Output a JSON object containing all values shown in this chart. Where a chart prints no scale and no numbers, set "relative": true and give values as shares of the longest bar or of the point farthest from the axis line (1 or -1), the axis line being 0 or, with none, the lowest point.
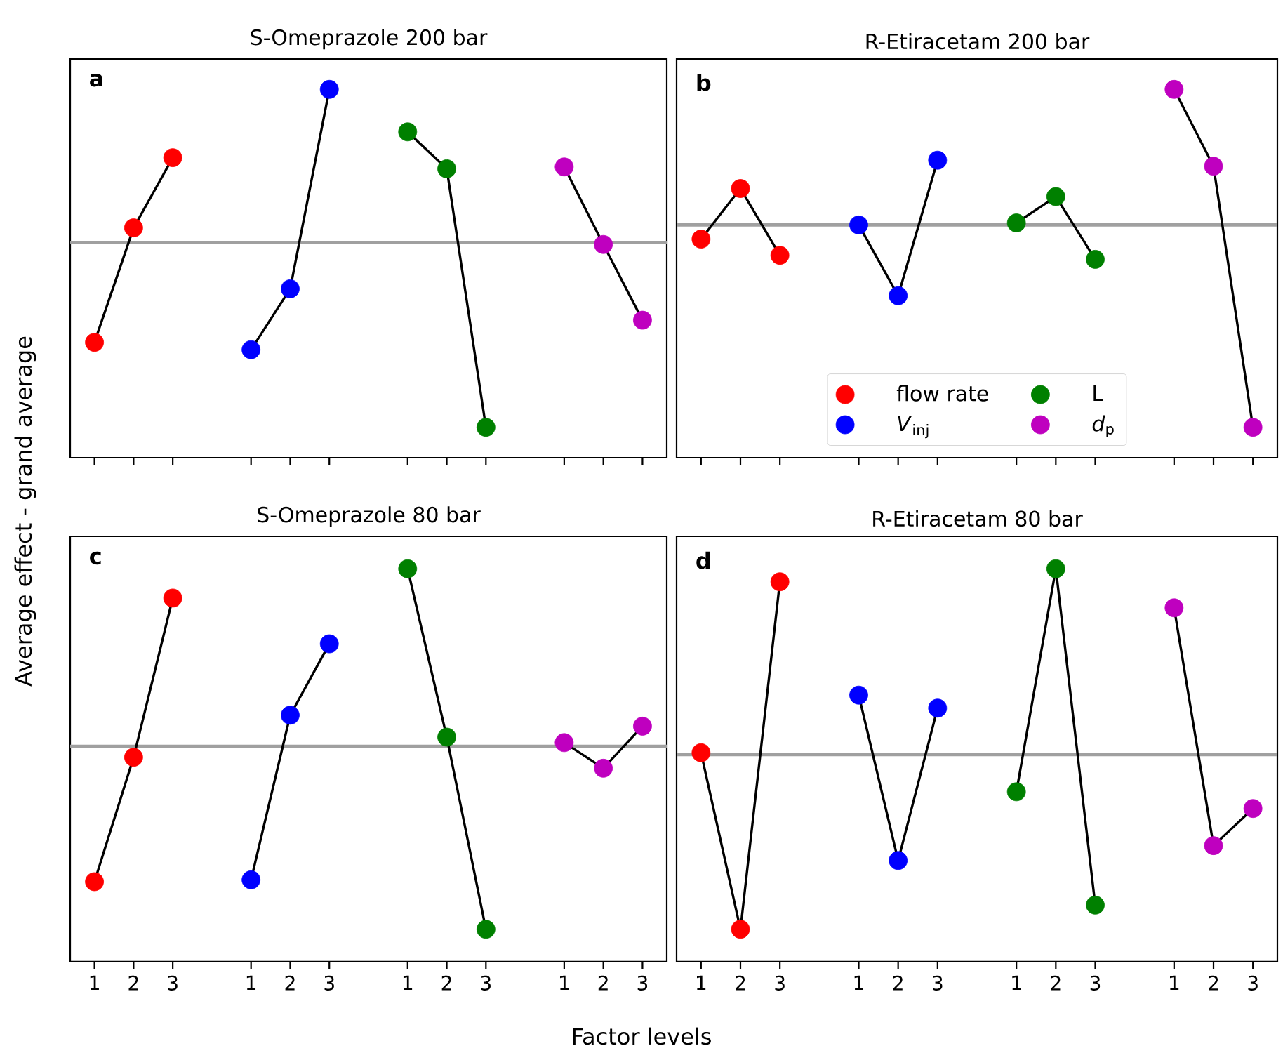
{
  "chart_data": [
    {
      "type": "line",
      "title": "S-Omeprazole 200 bar",
      "ylabel": "Average effect - grand average",
      "annotations": [
        "**a**"
      ],
      "relative": true,
      "marker": "circle",
      "tick_labels": false,
      "categories": [
        "1",
        "2",
        "3",
        null,
        "1",
        "2",
        "3",
        null,
        "1",
        "2",
        "3",
        null,
        "1",
        "2",
        "3"
      ],
      "ref_lines": [
        {
          "axis": "y",
          "value": 0,
          "color": "#a0a0a0"
        }
      ],
      "series": [
        {
          "color": "#ff0000",
          "values": [
            -0.54,
            0.08,
            0.46,
            null,
            null,
            null,
            null,
            null,
            null,
            null,
            null,
            null,
            null,
            null,
            null
          ]
        },
        {
          "color": "#0000ff",
          "values": [
            null,
            null,
            null,
            null,
            -0.58,
            -0.25,
            0.83,
            null,
            null,
            null,
            null,
            null,
            null,
            null,
            null
          ]
        },
        {
          "color": "#008000",
          "values": [
            null,
            null,
            null,
            null,
            null,
            null,
            null,
            null,
            0.6,
            0.4,
            -1,
            null,
            null,
            null,
            null
          ]
        },
        {
          "color": "#bf00bf",
          "values": [
            null,
            null,
            null,
            null,
            null,
            null,
            null,
            null,
            null,
            null,
            null,
            null,
            0.41,
            -0.01,
            -0.42
          ]
        }
      ]
    },
    {
      "type": "line",
      "title": "R-Etiracetam 200 bar",
      "annotations": [
        "**b**"
      ],
      "relative": true,
      "marker": "circle",
      "tick_labels": false,
      "legend": "bottom",
      "categories": [
        "1",
        "2",
        "3",
        null,
        "1",
        "2",
        "3",
        null,
        "1",
        "2",
        "3",
        null,
        "1",
        "2",
        "3"
      ],
      "ref_lines": [
        {
          "axis": "y",
          "value": 0,
          "color": "#a0a0a0"
        }
      ],
      "series": [
        {
          "name": "flow rate",
          "color": "#ff0000",
          "values": [
            -0.07,
            0.18,
            -0.15,
            null,
            null,
            null,
            null,
            null,
            null,
            null,
            null,
            null,
            null,
            null,
            null
          ]
        },
        {
          "name": "*V*$_{inj}$",
          "color": "#0000ff",
          "values": [
            null,
            null,
            null,
            null,
            0,
            -0.35,
            0.32,
            null,
            null,
            null,
            null,
            null,
            null,
            null,
            null
          ]
        },
        {
          "name": "L",
          "color": "#008000",
          "values": [
            null,
            null,
            null,
            null,
            null,
            null,
            null,
            null,
            0.01,
            0.14,
            -0.17,
            null,
            null,
            null,
            null
          ]
        },
        {
          "name": "*d*$_{p}$",
          "color": "#bf00bf",
          "values": [
            null,
            null,
            null,
            null,
            null,
            null,
            null,
            null,
            null,
            null,
            null,
            null,
            0.67,
            0.29,
            -1
          ]
        }
      ]
    },
    {
      "type": "line",
      "title": "S-Omeprazole 80 bar",
      "xlabel": "Factor levels",
      "annotations": [
        "**c**"
      ],
      "relative": true,
      "marker": "circle",
      "tick_labels": "x",
      "categories": [
        "1",
        "2",
        "3",
        null,
        "1",
        "2",
        "3",
        null,
        "1",
        "2",
        "3",
        null,
        "1",
        "2",
        "3"
      ],
      "ref_lines": [
        {
          "axis": "y",
          "value": 0,
          "color": "#a0a0a0"
        }
      ],
      "series": [
        {
          "color": "#ff0000",
          "values": [
            -0.74,
            -0.06,
            0.81,
            null,
            null,
            null,
            null,
            null,
            null,
            null,
            null,
            null,
            null,
            null,
            null
          ]
        },
        {
          "color": "#0000ff",
          "values": [
            null,
            null,
            null,
            null,
            -0.73,
            0.17,
            0.56,
            null,
            null,
            null,
            null,
            null,
            null,
            null,
            null
          ]
        },
        {
          "color": "#008000",
          "values": [
            null,
            null,
            null,
            null,
            null,
            null,
            null,
            null,
            0.97,
            0.05,
            -1,
            null,
            null,
            null,
            null
          ]
        },
        {
          "color": "#bf00bf",
          "values": [
            null,
            null,
            null,
            null,
            null,
            null,
            null,
            null,
            null,
            null,
            null,
            null,
            0.02,
            -0.12,
            0.11
          ]
        }
      ]
    },
    {
      "type": "line",
      "title": "R-Etiracetam 80 bar",
      "annotations": [
        "**d**"
      ],
      "relative": true,
      "marker": "circle",
      "tick_labels": "x",
      "categories": [
        "1",
        "2",
        "3",
        null,
        "1",
        "2",
        "3",
        null,
        "1",
        "2",
        "3",
        null,
        "1",
        "2",
        "3"
      ],
      "ref_lines": [
        {
          "axis": "y",
          "value": 0,
          "color": "#a0a0a0"
        }
      ],
      "series": [
        {
          "color": "#ff0000",
          "values": [
            0.01,
            -0.94,
            0.93,
            null,
            null,
            null,
            null,
            null,
            null,
            null,
            null,
            null,
            null,
            null,
            null
          ]
        },
        {
          "color": "#0000ff",
          "values": [
            null,
            null,
            null,
            null,
            0.32,
            -0.57,
            0.25,
            null,
            null,
            null,
            null,
            null,
            null,
            null,
            null
          ]
        },
        {
          "color": "#008000",
          "values": [
            null,
            null,
            null,
            null,
            null,
            null,
            null,
            null,
            -0.2,
            1,
            -0.81,
            null,
            null,
            null,
            null
          ]
        },
        {
          "color": "#bf00bf",
          "values": [
            null,
            null,
            null,
            null,
            null,
            null,
            null,
            null,
            null,
            null,
            null,
            null,
            0.79,
            -0.49,
            -0.29
          ]
        }
      ]
    }
  ]
}
